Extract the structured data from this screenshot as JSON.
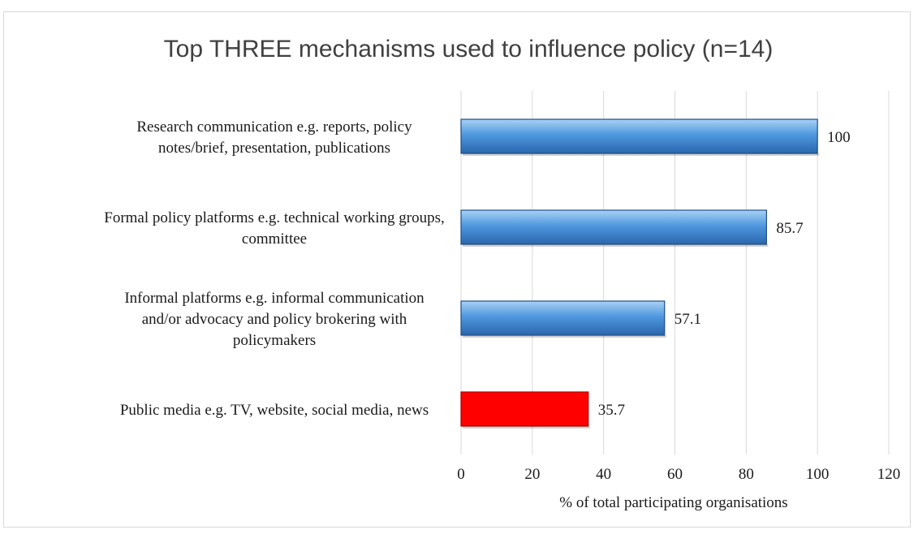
{
  "chart_data": {
    "type": "bar",
    "orientation": "horizontal",
    "title": "Top THREE mechanisms used to influence policy (n=14)",
    "xlabel": "% of total participating organisations",
    "ylabel": "",
    "xlim": [
      0,
      120
    ],
    "xticks": [
      "0",
      "20",
      "40",
      "60",
      "80",
      "100",
      "120"
    ],
    "grid": true,
    "legend": "none",
    "categories": [
      [
        "Research communication e.g. reports, policy",
        "notes/brief, presentation, publications"
      ],
      [
        "Formal policy platforms e.g. technical working groups,",
        "committee"
      ],
      [
        "Informal platforms e.g. informal communication",
        "and/or advocacy and policy brokering with",
        "policymakers"
      ],
      [
        "Public media e.g. TV, website, social media, news"
      ]
    ],
    "values": [
      100,
      85.7,
      57.1,
      35.7
    ],
    "data_labels": [
      "100",
      "85.7",
      "57.1",
      "35.7"
    ],
    "colors": [
      "#4a90d9",
      "#4a90d9",
      "#4a90d9",
      "#ff0000"
    ]
  }
}
